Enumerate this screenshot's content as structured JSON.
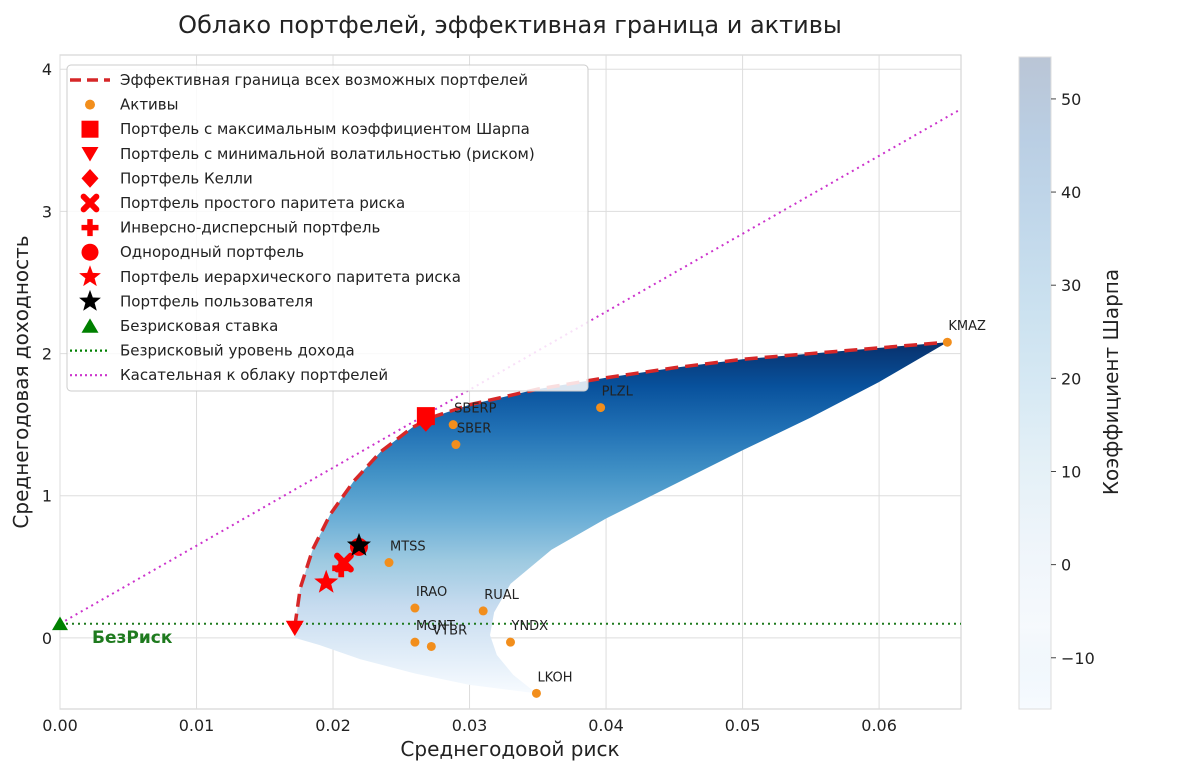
{
  "chart_data": {
    "type": "scatter",
    "title": "Облако портфелей, эффективная граница и активы",
    "xlabel": "Среднегодовой риск",
    "ylabel": "Среднегодовая доходность",
    "xlim": [
      0,
      0.066
    ],
    "ylim": [
      -0.5,
      4.1
    ],
    "x_ticks": [
      0,
      0.01,
      0.02,
      0.03,
      0.04,
      0.05,
      0.06
    ],
    "x_tick_labels": [
      "0.00",
      "0.01",
      "0.02",
      "0.03",
      "0.04",
      "0.05",
      "0.06"
    ],
    "y_ticks": [
      0,
      1,
      2,
      3,
      4
    ],
    "y_tick_labels": [
      "0",
      "1",
      "2",
      "3",
      "4"
    ],
    "grid": true,
    "legend_position": "top-left",
    "assets": [
      {
        "name": "KMAZ",
        "x": 0.065,
        "y": 2.08
      },
      {
        "name": "PLZL",
        "x": 0.0396,
        "y": 1.62
      },
      {
        "name": "SBERP",
        "x": 0.0288,
        "y": 1.5
      },
      {
        "name": "SBER",
        "x": 0.029,
        "y": 1.36
      },
      {
        "name": "MTSS",
        "x": 0.0241,
        "y": 0.53
      },
      {
        "name": "IRAO",
        "x": 0.026,
        "y": 0.21
      },
      {
        "name": "RUAL",
        "x": 0.031,
        "y": 0.19
      },
      {
        "name": "MGNT",
        "x": 0.026,
        "y": -0.03
      },
      {
        "name": "VTBR",
        "x": 0.0272,
        "y": -0.06
      },
      {
        "name": "YNDX",
        "x": 0.033,
        "y": -0.03
      },
      {
        "name": "LKOH",
        "x": 0.0349,
        "y": -0.39
      }
    ],
    "efficient_frontier": {
      "x": [
        0.0172,
        0.0176,
        0.0185,
        0.0198,
        0.0215,
        0.0235,
        0.0258,
        0.0272,
        0.03,
        0.035,
        0.04,
        0.045,
        0.05,
        0.055,
        0.06,
        0.065
      ],
      "y": [
        0.08,
        0.35,
        0.62,
        0.87,
        1.1,
        1.31,
        1.48,
        1.55,
        1.64,
        1.75,
        1.83,
        1.9,
        1.96,
        2.0,
        2.04,
        2.08
      ]
    },
    "cloud_lower_boundary": {
      "x": [
        0.065,
        0.06,
        0.055,
        0.05,
        0.045,
        0.04,
        0.036,
        0.033,
        0.0318,
        0.0315,
        0.032,
        0.0332,
        0.0349,
        0.03,
        0.026,
        0.022,
        0.019,
        0.0172
      ],
      "y": [
        2.08,
        1.8,
        1.55,
        1.32,
        1.08,
        0.84,
        0.62,
        0.38,
        0.18,
        0.02,
        -0.12,
        -0.26,
        -0.39,
        -0.33,
        -0.25,
        -0.15,
        -0.05,
        0.0
      ]
    },
    "colorbar": {
      "label": "Коэффициент Шарпа",
      "range": [
        -15.5,
        54.5
      ],
      "ticks": [
        -10,
        0,
        10,
        20,
        30,
        40,
        50
      ],
      "tick_labels": [
        "−10",
        "0",
        "10",
        "20",
        "30",
        "40",
        "50"
      ],
      "colors": [
        "#f7fbff",
        "#deebf7",
        "#c6dbef",
        "#9ecae1",
        "#6baed6",
        "#4292c6",
        "#2171b5",
        "#08519c",
        "#08306b"
      ]
    },
    "special_portfolios": [
      {
        "name": "Портфель с максимальным коэффициентом Шарпа",
        "marker": "square",
        "color": "#ff0000",
        "x": 0.0268,
        "y": 1.56
      },
      {
        "name": "Портфель с минимальной волатильностью (риском)",
        "marker": "triangle-down",
        "color": "#ff0000",
        "x": 0.0172,
        "y": 0.07
      },
      {
        "name": "Портфель Келли",
        "marker": "diamond",
        "color": "#ff0000",
        "x": 0.0268,
        "y": 1.52
      },
      {
        "name": "Портфель простого паритета риска",
        "marker": "x",
        "color": "#ff0000",
        "x": 0.0208,
        "y": 0.53
      },
      {
        "name": "Инверсно-дисперсный портфель",
        "marker": "plus",
        "color": "#ff0000",
        "x": 0.0206,
        "y": 0.49
      },
      {
        "name": "Однородный портфель",
        "marker": "circle",
        "color": "#ff0000",
        "x": 0.0219,
        "y": 0.64
      },
      {
        "name": "Портфель иерархического паритета риска",
        "marker": "star",
        "color": "#ff0000",
        "x": 0.0195,
        "y": 0.39
      },
      {
        "name": "Портфель пользователя",
        "marker": "star",
        "color": "#000000",
        "x": 0.0219,
        "y": 0.65
      },
      {
        "name": "Безрисковая ставка",
        "marker": "triangle-up",
        "color": "#008000",
        "x": 0.0,
        "y": 0.1
      }
    ],
    "risk_free_rate": 0.1,
    "risk_free_label": "БезРиск",
    "tangent_line": {
      "x": [
        0,
        0.066
      ],
      "y": [
        0.1,
        3.72
      ]
    },
    "legend": [
      {
        "label": "Эффективная граница всех возможных портфелей",
        "type": "dashed-line",
        "color": "#d62728"
      },
      {
        "label": "Активы",
        "type": "dot",
        "color": "#f28e1c"
      },
      {
        "label": "Портфель с максимальным коэффициентом Шарпа",
        "type": "square",
        "color": "#ff0000"
      },
      {
        "label": "Портфель с минимальной волатильностью (риском)",
        "type": "triangle-down",
        "color": "#ff0000"
      },
      {
        "label": "Портфель Келли",
        "type": "diamond",
        "color": "#ff0000"
      },
      {
        "label": "Портфель простого паритета риска",
        "type": "x",
        "color": "#ff0000"
      },
      {
        "label": "Инверсно-дисперсный портфель",
        "type": "plus",
        "color": "#ff0000"
      },
      {
        "label": "Однородный портфель",
        "type": "circle",
        "color": "#ff0000"
      },
      {
        "label": "Портфель иерархического паритета риска",
        "type": "star",
        "color": "#ff0000"
      },
      {
        "label": "Портфель пользователя",
        "type": "star",
        "color": "#000000"
      },
      {
        "label": "Безрисковая ставка",
        "type": "triangle-up",
        "color": "#008000"
      },
      {
        "label": "Безрисковый уровень дохода",
        "type": "dotted-line",
        "color": "#008000"
      },
      {
        "label": "Касательная к облаку портфелей",
        "type": "dotted-line",
        "color": "#cc33cc"
      }
    ]
  }
}
